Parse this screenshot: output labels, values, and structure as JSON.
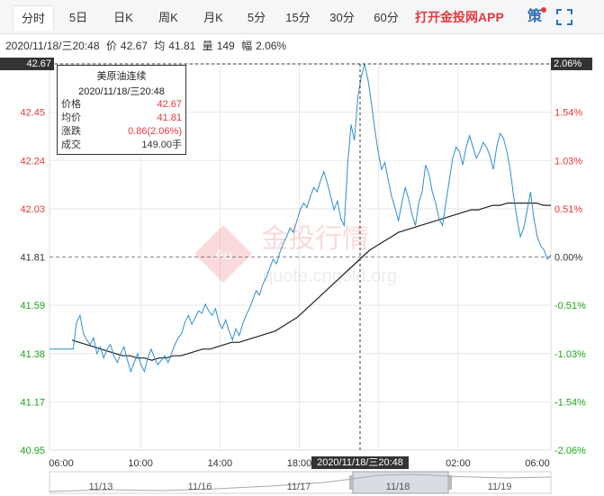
{
  "tabs": [
    {
      "label": "分时",
      "active": true
    },
    {
      "label": "5日",
      "active": false
    },
    {
      "label": "日K",
      "active": false
    },
    {
      "label": "周K",
      "active": false
    },
    {
      "label": "月K",
      "active": false
    },
    {
      "label": "5分",
      "active": false
    },
    {
      "label": "15分",
      "active": false
    },
    {
      "label": "30分",
      "active": false
    },
    {
      "label": "60分",
      "active": false
    }
  ],
  "promo": "打开金投网APP",
  "tools": {
    "strategy_label": "策",
    "strategy_icon": "strategy-icon",
    "fullscreen_icon": "fullscreen-icon",
    "badge_color": "#e4393c"
  },
  "info": {
    "datetime": "2020/11/18/三20:48",
    "price_label": "价",
    "price": "42.67",
    "avg_label": "均",
    "avg": "41.81",
    "vol_label": "量",
    "vol": "149",
    "amp_label": "幅",
    "amp": "2.06%"
  },
  "tooltip": {
    "title": "美原油连续",
    "time": "2020/11/18/三20:48",
    "rows": [
      {
        "k": "价格",
        "v": "42.67"
      },
      {
        "k": "均价",
        "v": "41.81"
      },
      {
        "k": "涨跌",
        "v": "0.86(2.06%)"
      },
      {
        "k": "成交",
        "v": "149.00手"
      }
    ]
  },
  "cursor": {
    "price_tag": "42.67",
    "pct_tag": "2.06%",
    "time_tag": "2020/11/18/三20:48"
  },
  "watermark": {
    "cn": "金投行情",
    "url": "quote.cngold.org",
    "logo": "Au"
  },
  "colors": {
    "up": "#e4393c",
    "down": "#1aa31a",
    "price_line": "#2f8fd0",
    "avg_line": "#222222"
  },
  "chart_data": {
    "type": "line",
    "base_price": 41.81,
    "ylim": [
      40.95,
      42.67
    ],
    "y_ticks_left": [
      "42.67",
      "42.45",
      "42.24",
      "42.03",
      "41.81",
      "41.59",
      "41.38",
      "41.17",
      "40.95"
    ],
    "y_ticks_right": [
      "2.06%",
      "1.54%",
      "1.03%",
      "0.51%",
      "0.00%",
      "-0.51%",
      "-1.03%",
      "-1.54%",
      "-2.06%"
    ],
    "x_ticks": [
      "06:00",
      "10:00",
      "14:00",
      "18:00",
      "22:00",
      "02:00",
      "06:00"
    ],
    "nav_dates": [
      "11/13",
      "11/16",
      "11/17",
      "11/18",
      "11/19"
    ],
    "series": [
      {
        "name": "价格",
        "values": [
          41.4,
          41.4,
          41.4,
          41.4,
          41.4,
          41.4,
          41.4,
          41.4,
          41.52,
          41.55,
          41.47,
          41.44,
          41.42,
          41.45,
          41.38,
          41.41,
          41.36,
          41.4,
          41.42,
          41.37,
          41.34,
          41.38,
          41.41,
          41.35,
          41.3,
          41.34,
          41.38,
          41.33,
          41.3,
          41.36,
          41.4,
          41.36,
          41.33,
          41.35,
          41.37,
          41.34,
          41.38,
          41.42,
          41.45,
          41.47,
          41.52,
          41.55,
          41.51,
          41.54,
          41.57,
          41.56,
          41.6,
          41.57,
          41.55,
          41.58,
          41.52,
          41.49,
          41.53,
          41.48,
          41.44,
          41.49,
          41.46,
          41.51,
          41.55,
          41.58,
          41.62,
          41.66,
          41.64,
          41.69,
          41.72,
          41.76,
          41.8,
          41.78,
          41.83,
          41.87,
          41.9,
          41.94,
          41.92,
          41.97,
          42.02,
          42.05,
          42.03,
          42.08,
          42.12,
          42.1,
          42.15,
          42.19,
          42.14,
          42.08,
          42.02,
          42.06,
          41.98,
          41.95,
          42.22,
          42.4,
          42.33,
          42.52,
          42.61,
          42.67,
          42.6,
          42.5,
          42.38,
          42.28,
          42.2,
          42.23,
          42.15,
          42.08,
          42.03,
          41.97,
          42.05,
          42.12,
          42.07,
          42.0,
          41.95,
          42.05,
          42.1,
          42.22,
          42.18,
          42.1,
          42.05,
          41.98,
          41.95,
          42.05,
          42.15,
          42.25,
          42.3,
          42.28,
          42.22,
          42.3,
          42.35,
          42.3,
          42.25,
          42.28,
          42.32,
          42.3,
          42.26,
          42.2,
          42.3,
          42.36,
          42.34,
          42.28,
          42.2,
          42.08,
          41.98,
          41.9,
          41.94,
          42.02,
          42.1,
          41.98,
          41.9,
          41.86,
          41.84,
          41.8,
          41.82
        ]
      },
      {
        "name": "均价",
        "values": [
          41.44,
          41.43,
          41.42,
          41.41,
          41.4,
          41.39,
          41.38,
          41.37,
          41.37,
          41.36,
          41.36,
          41.35,
          41.36,
          41.36,
          41.37,
          41.37,
          41.38,
          41.39,
          41.4,
          41.4,
          41.41,
          41.42,
          41.43,
          41.43,
          41.44,
          41.45,
          41.46,
          41.47,
          41.48,
          41.5,
          41.52,
          41.54,
          41.57,
          41.6,
          41.63,
          41.66,
          41.69,
          41.72,
          41.75,
          41.78,
          41.81,
          41.84,
          41.86,
          41.88,
          41.9,
          41.92,
          41.93,
          41.94,
          41.95,
          41.96,
          41.97,
          41.98,
          41.99,
          42.0,
          42.01,
          42.02,
          42.02,
          42.03,
          42.04,
          42.04,
          42.05,
          42.05,
          42.05,
          42.05,
          42.05,
          42.04,
          42.04
        ]
      }
    ]
  }
}
